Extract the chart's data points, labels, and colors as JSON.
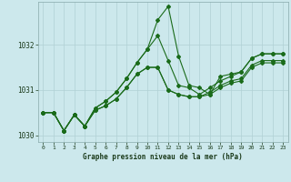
{
  "xlabel": "Graphe pression niveau de la mer (hPa)",
  "background_color": "#cce8ec",
  "line_color": "#1a6b1a",
  "grid_color": "#b0d0d4",
  "hours": [
    0,
    1,
    2,
    3,
    4,
    5,
    6,
    7,
    8,
    9,
    10,
    11,
    12,
    13,
    14,
    15,
    16,
    17,
    18,
    19,
    20,
    21,
    22,
    23
  ],
  "series1": [
    1030.5,
    1030.5,
    1030.1,
    1030.45,
    1030.2,
    1030.6,
    1030.75,
    1030.95,
    1031.25,
    1031.6,
    1031.9,
    1032.55,
    1032.85,
    1031.75,
    1031.1,
    1031.05,
    1030.9,
    1031.3,
    1031.35,
    1031.4,
    1031.7,
    1031.8,
    1031.8,
    1031.8
  ],
  "series2": [
    1030.5,
    1030.5,
    1030.1,
    1030.45,
    1030.2,
    1030.6,
    1030.75,
    1030.95,
    1031.25,
    1031.6,
    1031.9,
    1032.2,
    1031.65,
    1031.1,
    1031.05,
    1030.9,
    1031.05,
    1031.2,
    1031.3,
    1031.4,
    1031.7,
    1031.8,
    1031.8,
    1031.8
  ],
  "series3": [
    1030.5,
    1030.5,
    1030.1,
    1030.45,
    1030.2,
    1030.55,
    1030.65,
    1030.8,
    1031.05,
    1031.35,
    1031.5,
    1031.5,
    1031.0,
    1030.9,
    1030.85,
    1030.85,
    1030.95,
    1031.1,
    1031.2,
    1031.25,
    1031.55,
    1031.65,
    1031.65,
    1031.65
  ],
  "series4": [
    1030.5,
    1030.5,
    1030.1,
    1030.45,
    1030.2,
    1030.55,
    1030.65,
    1030.8,
    1031.05,
    1031.35,
    1031.5,
    1031.5,
    1031.0,
    1030.9,
    1030.85,
    1030.85,
    1030.9,
    1031.05,
    1031.15,
    1031.2,
    1031.5,
    1031.6,
    1031.6,
    1031.6
  ],
  "ylim": [
    1029.85,
    1032.95
  ],
  "yticks": [
    1030,
    1031,
    1032
  ],
  "xticks": [
    0,
    1,
    2,
    3,
    4,
    5,
    6,
    7,
    8,
    9,
    10,
    11,
    12,
    13,
    14,
    15,
    16,
    17,
    18,
    19,
    20,
    21,
    22,
    23
  ]
}
